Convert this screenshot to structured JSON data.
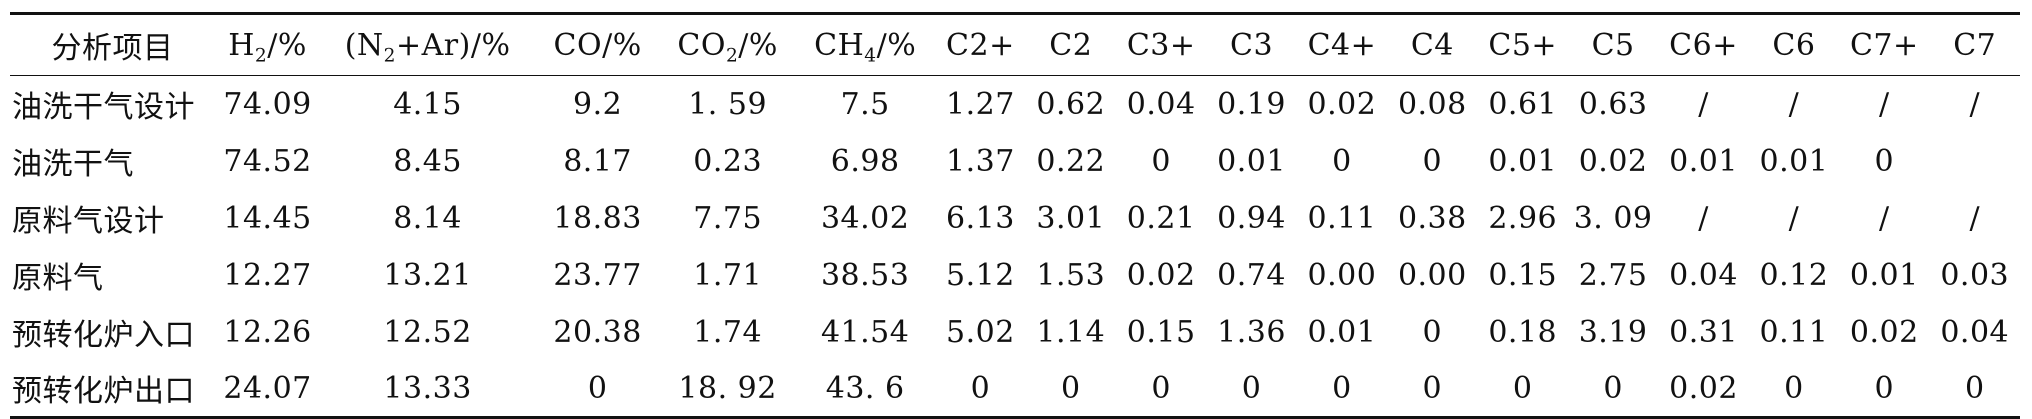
{
  "table": {
    "headers": {
      "label": "分析项目",
      "h2_main": "H",
      "h2_sub": "2",
      "h2_unit": "/%",
      "n2_open": "(N",
      "n2_sub": "2",
      "n2_rest": "+Ar)/%",
      "co": "CO/%",
      "co2_main": "CO",
      "co2_sub": "2",
      "co2_unit": "/%",
      "ch4_main": "CH",
      "ch4_sub": "4",
      "ch4_unit": "/%",
      "c2plus": "C2+",
      "c2": "C2",
      "c3plus": "C3+",
      "c3": "C3",
      "c4plus": "C4+",
      "c4": "C4",
      "c5plus": "C5+",
      "c5": "C5",
      "c6plus": "C6+",
      "c6": "C6",
      "c7plus": "C7+",
      "c7": "C7"
    },
    "rows": [
      {
        "label": "油洗干气设计",
        "cells": [
          "74.09",
          "4.15",
          "9.2",
          "1. 59",
          "7.5",
          "1.27",
          "0.62",
          "0.04",
          "0.19",
          "0.02",
          "0.08",
          "0.61",
          "0.63",
          "/",
          "/",
          "/",
          "/"
        ]
      },
      {
        "label": "油洗干气",
        "cells": [
          "74.52",
          "8.45",
          "8.17",
          "0.23",
          "6.98",
          "1.37",
          "0.22",
          "0",
          "0.01",
          "0",
          "0",
          "0.01",
          "0.02",
          "0.01",
          "0.01",
          "0",
          ""
        ]
      },
      {
        "label": "原料气设计",
        "cells": [
          "14.45",
          "8.14",
          "18.83",
          "7.75",
          "34.02",
          "6.13",
          "3.01",
          "0.21",
          "0.94",
          "0.11",
          "0.38",
          "2.96",
          "3. 09",
          "/",
          "/",
          "/",
          "/"
        ]
      },
      {
        "label": "原料气",
        "cells": [
          "12.27",
          "13.21",
          "23.77",
          "1.71",
          "38.53",
          "5.12",
          "1.53",
          "0.02",
          "0.74",
          "0.00",
          "0.00",
          "0.15",
          "2.75",
          "0.04",
          "0.12",
          "0.01",
          "0.03"
        ]
      },
      {
        "label": "预转化炉入口",
        "cells": [
          "12.26",
          "12.52",
          "20.38",
          "1.74",
          "41.54",
          "5.02",
          "1.14",
          "0.15",
          "1.36",
          "0.01",
          "0",
          "0.18",
          "3.19",
          "0.31",
          "0.11",
          "0.02",
          "0.04"
        ]
      },
      {
        "label": "预转化炉出口",
        "cells": [
          "24.07",
          "13.33",
          "0",
          "18. 92",
          "43. 6",
          "0",
          "0",
          "0",
          "0",
          "0",
          "0",
          "0",
          "0",
          "0.02",
          "0",
          "0",
          "0"
        ]
      }
    ]
  }
}
